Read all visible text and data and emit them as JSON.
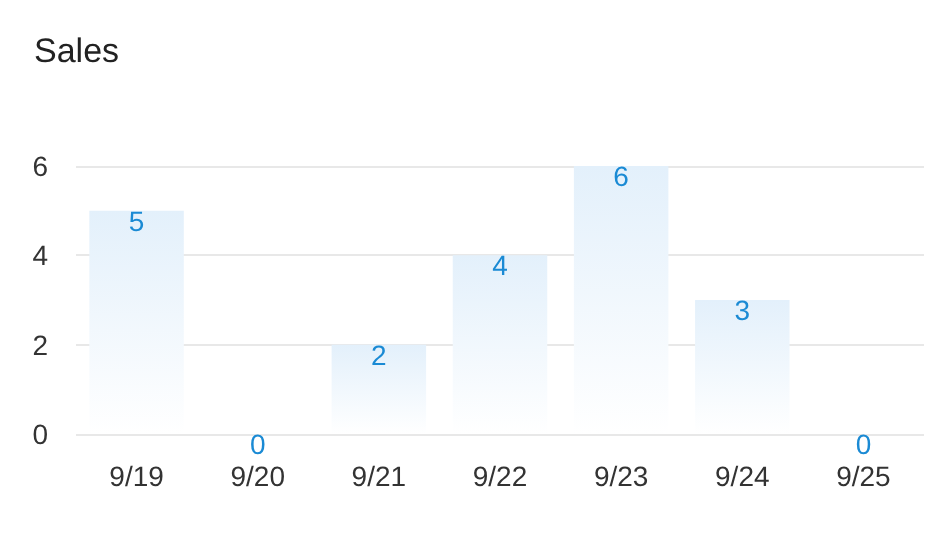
{
  "chart_data": {
    "type": "bar",
    "title": "Sales",
    "categories": [
      "9/19",
      "9/20",
      "9/21",
      "9/22",
      "9/23",
      "9/24",
      "9/25"
    ],
    "values": [
      5,
      0,
      2,
      4,
      6,
      3,
      0
    ],
    "color": "#e3f0fb",
    "ylim": [
      0,
      6
    ],
    "yticks": [
      0,
      2,
      4,
      6
    ],
    "grid": "y",
    "data_labels": true
  }
}
